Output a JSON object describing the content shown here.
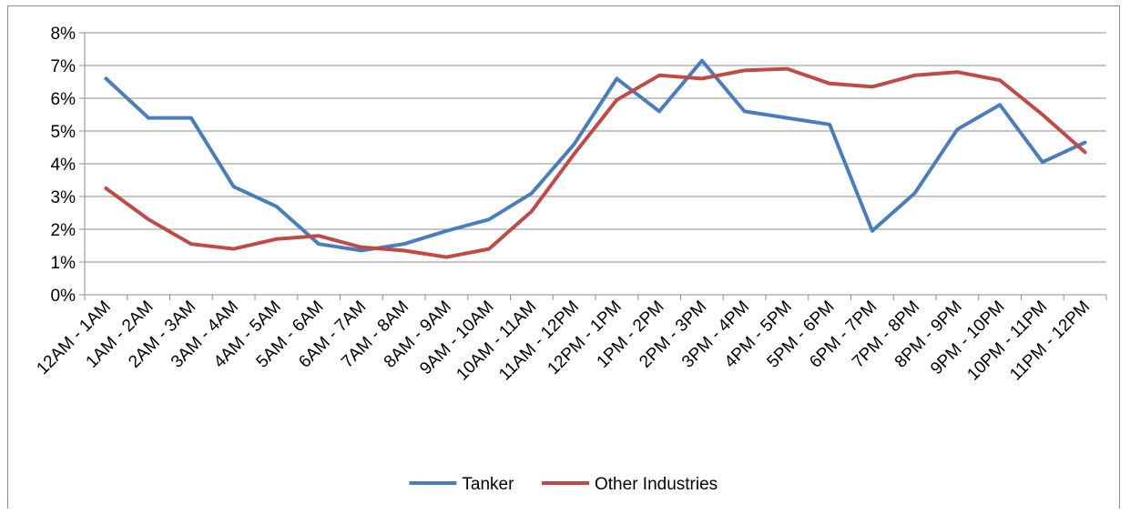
{
  "chart_data": {
    "type": "line",
    "categories": [
      "12AM - 1AM",
      "1AM - 2AM",
      "2AM - 3AM",
      "3AM - 4AM",
      "4AM - 5AM",
      "5AM - 6AM",
      "6AM - 7AM",
      "7AM - 8AM",
      "8AM - 9AM",
      "9AM - 10AM",
      "10AM - 11AM",
      "11AM - 12PM",
      "12PM - 1PM",
      "1PM - 2PM",
      "2PM - 3PM",
      "3PM - 4PM",
      "4PM - 5PM",
      "5PM - 6PM",
      "6PM - 7PM",
      "7PM - 8PM",
      "8PM - 9PM",
      "9PM - 10PM",
      "10PM - 11PM",
      "11PM - 12PM"
    ],
    "series": [
      {
        "name": "Tanker",
        "color": "#4a7ebb",
        "values": [
          6.6,
          5.4,
          5.4,
          3.3,
          2.7,
          1.55,
          1.35,
          1.55,
          1.95,
          2.3,
          3.1,
          4.6,
          6.6,
          5.6,
          7.15,
          5.6,
          5.4,
          5.2,
          1.95,
          3.1,
          5.05,
          5.8,
          4.05,
          4.65
        ]
      },
      {
        "name": "Other Industries",
        "color": "#be4b48",
        "values": [
          3.25,
          2.3,
          1.55,
          1.4,
          1.7,
          1.8,
          1.45,
          1.35,
          1.15,
          1.4,
          2.55,
          4.3,
          5.95,
          6.7,
          6.6,
          6.85,
          6.9,
          6.45,
          6.35,
          6.7,
          6.8,
          6.55,
          5.5,
          4.35
        ]
      }
    ],
    "yticks": [
      "0%",
      "1%",
      "2%",
      "3%",
      "4%",
      "5%",
      "6%",
      "7%",
      "8%"
    ],
    "ylim": [
      0,
      8
    ],
    "grid": true,
    "legend_position": "bottom"
  }
}
